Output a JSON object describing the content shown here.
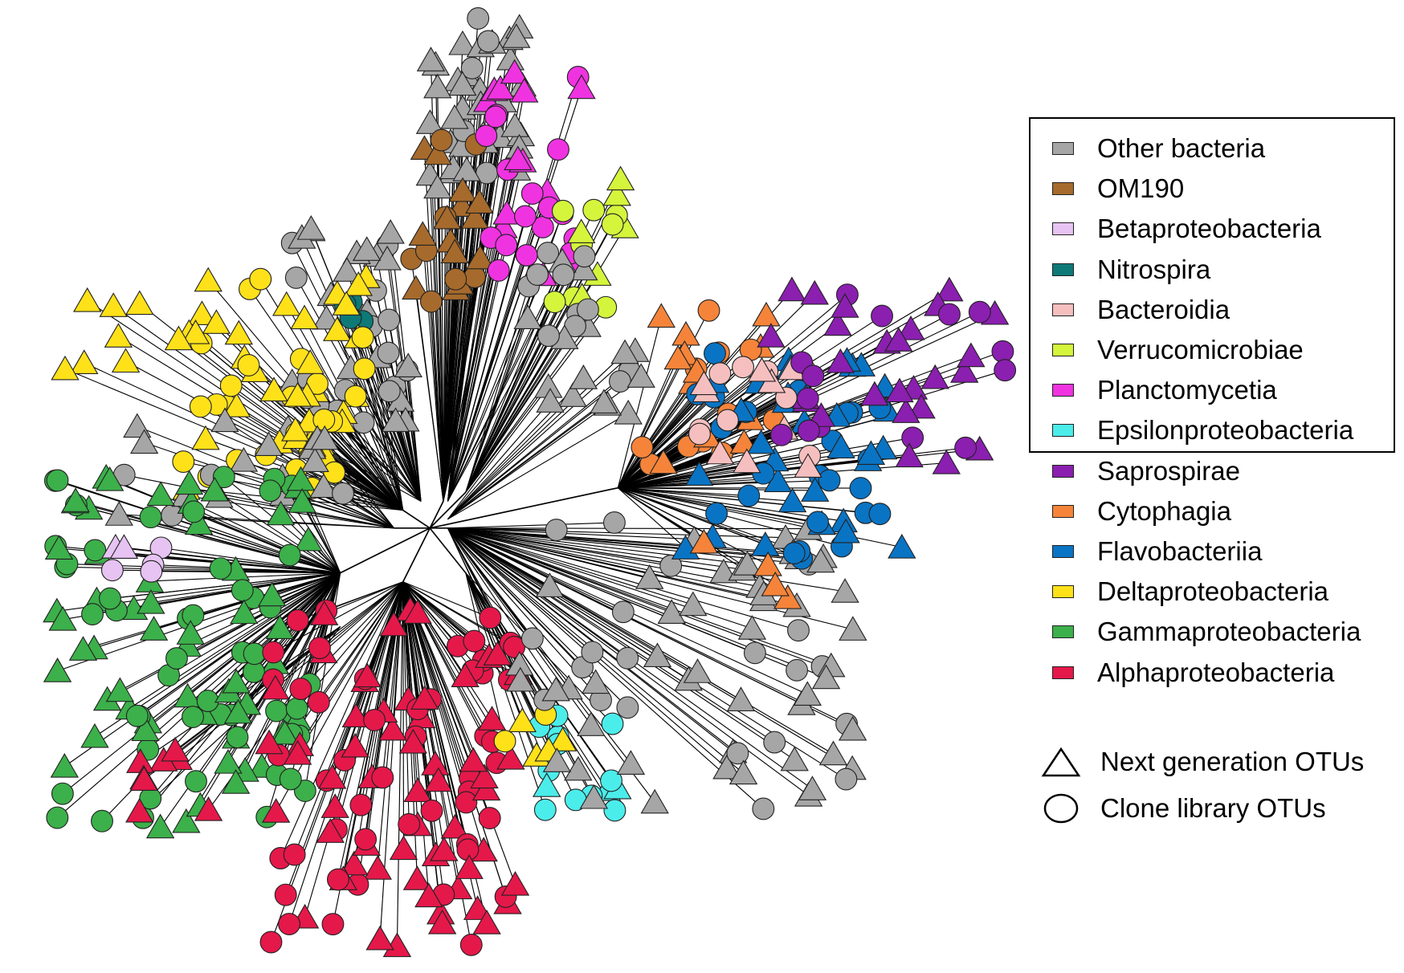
{
  "legend": {
    "categories": [
      {
        "key": "other",
        "label": "Other bacteria",
        "color": "#a6a6a6"
      },
      {
        "key": "om190",
        "label": "OM190",
        "color": "#a66a2c"
      },
      {
        "key": "beta",
        "label": "Betaproteobacteria",
        "color": "#e6c3f2"
      },
      {
        "key": "nitro",
        "label": "Nitrospira",
        "color": "#0d7a78"
      },
      {
        "key": "bact",
        "label": "Bacteroidia",
        "color": "#f6bfbf"
      },
      {
        "key": "verr",
        "label": "Verrucomicrobiae",
        "color": "#d4f53c"
      },
      {
        "key": "planc",
        "label": "Planctomycetia",
        "color": "#ef33e0"
      },
      {
        "key": "eps",
        "label": "Epsilonproteobacteria",
        "color": "#4bedeb"
      },
      {
        "key": "sapro",
        "label": "Saprospirae",
        "color": "#8b1fb0"
      },
      {
        "key": "cyto",
        "label": "Cytophagia",
        "color": "#f5843a"
      },
      {
        "key": "flavo",
        "label": "Flavobacteriia",
        "color": "#0a74c4"
      },
      {
        "key": "delta",
        "label": "Deltaproteobacteria",
        "color": "#ffe11a"
      },
      {
        "key": "gamma",
        "label": "Gammaproteobacteria",
        "color": "#3cb04a"
      },
      {
        "key": "alpha",
        "label": "Alphaproteobacteria",
        "color": "#e5184a"
      }
    ]
  },
  "shape_legend": [
    {
      "shape": "triangle",
      "label": "Next generation OTUs"
    },
    {
      "shape": "circle",
      "label": "Clone library OTUs"
    }
  ]
}
